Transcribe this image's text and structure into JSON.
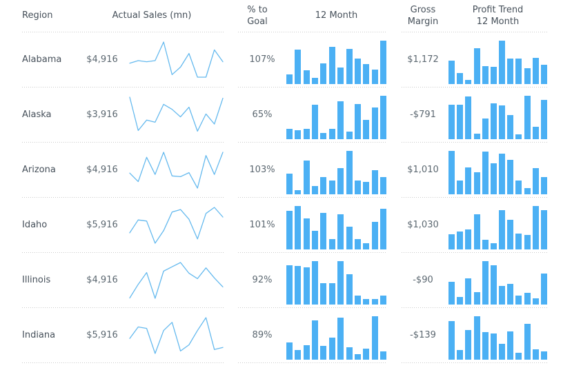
{
  "header": {
    "region": "Region",
    "actual_sales": "Actual Sales (mn)",
    "pct_to_goal": "% to\nGoal",
    "twelve_month": "12 Month",
    "gross_margin": "Gross\nMargin",
    "profit_trend": "Profit Trend\n12 Month"
  },
  "colors": {
    "accent_bar": "#4bb0f4",
    "accent_line": "#64b9ee",
    "label_text": "#454f59",
    "value_text": "#5b6770",
    "separator": "#c9c9c9",
    "background": "#ffffff"
  },
  "chart_data": {
    "type": "table",
    "columns": [
      "Region",
      "Actual Sales (mn)",
      "% to Goal",
      "12 Month",
      "Gross Margin",
      "Profit Trend 12 Month"
    ],
    "sparkline_note": "sparkline values normalized 0-1 (axes unlabeled in source)",
    "rows": [
      {
        "region": "Alabama",
        "actual_sales": "$4,916",
        "actual_sales_sparkline": [
          0.41,
          0.48,
          0.45,
          0.48,
          1.0,
          0.09,
          0.3,
          0.68,
          0.02,
          0.02,
          0.78,
          0.45
        ],
        "pct_to_goal": "107%",
        "twelve_month_bars": [
          0.23,
          0.8,
          0.32,
          0.15,
          0.48,
          0.85,
          0.38,
          0.81,
          0.59,
          0.46,
          0.34,
          1.0
        ],
        "gross_margin": "$1,172",
        "profit_trend_bars": [
          0.54,
          0.25,
          0.09,
          0.82,
          0.42,
          0.39,
          1.0,
          0.58,
          0.58,
          0.37,
          0.61,
          0.45
        ]
      },
      {
        "region": "Alaska",
        "actual_sales": "$3,916",
        "actual_sales_sparkline": [
          1.0,
          0.07,
          0.36,
          0.3,
          0.8,
          0.66,
          0.45,
          0.72,
          0.05,
          0.53,
          0.25,
          0.97
        ],
        "pct_to_goal": "65%",
        "twelve_month_bars": [
          0.24,
          0.21,
          0.24,
          0.79,
          0.15,
          0.24,
          0.87,
          0.18,
          0.81,
          0.45,
          0.73,
          1.0
        ],
        "gross_margin": "-$791",
        "profit_trend_bars": [
          0.79,
          0.79,
          0.98,
          0.13,
          0.47,
          0.82,
          0.77,
          0.55,
          0.11,
          1.0,
          0.28,
          0.9
        ]
      },
      {
        "region": "Arizona",
        "actual_sales": "$4,916",
        "actual_sales_sparkline": [
          0.42,
          0.18,
          0.86,
          0.38,
          1.0,
          0.34,
          0.32,
          0.43,
          0.0,
          0.91,
          0.38,
          1.0
        ],
        "pct_to_goal": "103%",
        "twelve_month_bars": [
          0.48,
          0.1,
          0.77,
          0.19,
          0.39,
          0.31,
          0.6,
          1.0,
          0.31,
          0.28,
          0.56,
          0.4
        ],
        "gross_margin": "$1,010",
        "profit_trend_bars": [
          1.0,
          0.31,
          0.62,
          0.51,
          0.98,
          0.71,
          0.93,
          0.79,
          0.31,
          0.15,
          0.6,
          0.4
        ]
      },
      {
        "region": "Idaho",
        "actual_sales": "$5,916",
        "actual_sales_sparkline": [
          0.29,
          0.65,
          0.62,
          0.0,
          0.35,
          0.87,
          0.94,
          0.67,
          0.12,
          0.83,
          1.0,
          0.73
        ],
        "pct_to_goal": "101%",
        "twelve_month_bars": [
          0.89,
          1.0,
          0.71,
          0.43,
          0.84,
          0.24,
          0.81,
          0.53,
          0.24,
          0.15,
          0.64,
          0.94
        ],
        "gross_margin": "$1,030",
        "profit_trend_bars": [
          0.35,
          0.42,
          0.46,
          0.81,
          0.22,
          0.14,
          0.9,
          0.69,
          0.37,
          0.33,
          1.0,
          0.9
        ]
      },
      {
        "region": "Illinois",
        "actual_sales": "$4,916",
        "actual_sales_sparkline": [
          0.01,
          0.39,
          0.72,
          0.0,
          0.76,
          0.88,
          1.0,
          0.7,
          0.55,
          0.85,
          0.57,
          0.32
        ],
        "pct_to_goal": "92%",
        "twelve_month_bars": [
          0.91,
          0.89,
          0.85,
          1.0,
          0.49,
          0.49,
          1.0,
          0.7,
          0.2,
          0.12,
          0.13,
          0.21
        ],
        "gross_margin": "-$90",
        "profit_trend_bars": [
          0.52,
          0.18,
          0.6,
          0.28,
          1.0,
          0.9,
          0.43,
          0.48,
          0.2,
          0.27,
          0.14,
          0.71
        ]
      },
      {
        "region": "Indiana",
        "actual_sales": "$5,916",
        "actual_sales_sparkline": [
          0.42,
          0.74,
          0.7,
          0.0,
          0.64,
          0.87,
          0.07,
          0.24,
          0.64,
          1.0,
          0.11,
          0.17
        ],
        "pct_to_goal": "89%",
        "twelve_month_bars": [
          0.4,
          0.23,
          0.34,
          0.91,
          0.32,
          0.5,
          0.97,
          0.28,
          0.12,
          0.25,
          1.0,
          0.19
        ],
        "gross_margin": "-$139",
        "profit_trend_bars": [
          0.89,
          0.23,
          0.69,
          1.0,
          0.64,
          0.6,
          0.36,
          0.65,
          0.16,
          0.82,
          0.24,
          0.19
        ]
      }
    ]
  }
}
